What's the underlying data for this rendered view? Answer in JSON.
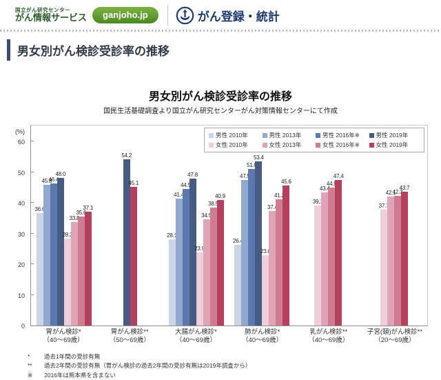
{
  "theme": {
    "logo_green": "#2a5a2a",
    "badge_top": "#7db244",
    "badge_bottom": "#4b8a1f",
    "navy": "#1e3a6e",
    "heading_text": "#323a49",
    "heading_bar": "#3c4c6e"
  },
  "header": {
    "logo_small": "国立がん研究センター",
    "logo_large": "がん情報サービス",
    "badge": "ganjoho.jp",
    "section": "がん登録・統計"
  },
  "page": {
    "title": "男女別がん検診受診率の推移"
  },
  "chart_data": {
    "type": "bar",
    "title": "男女別がん検診受診率の推移",
    "subtitle": "国民生活基礎調査より国立がん研究センターがん対策情報センターにて作成",
    "unit_label": "(%)",
    "ylim": [
      0,
      60
    ],
    "y_ticks": [
      0,
      10,
      20,
      30,
      40,
      50,
      60
    ],
    "grid": false,
    "legend_position": "top-right-inside",
    "series": [
      {
        "name": "男性 2010年",
        "color": "#ccd5e6"
      },
      {
        "name": "男性 2013年",
        "color": "#93a8ce"
      },
      {
        "name": "男性 2016年※",
        "color": "#5b79ae"
      },
      {
        "name": "男性 2019年",
        "color": "#475c82"
      },
      {
        "name": "女性 2010年",
        "color": "#eeced9"
      },
      {
        "name": "女性 2013年",
        "color": "#dfa5b7"
      },
      {
        "name": "女性 2016年※",
        "color": "#cf7b93"
      },
      {
        "name": "女性 2019年",
        "color": "#b5405e"
      }
    ],
    "groups": [
      {
        "label": "胃がん検診*",
        "sublabel": "（40～69歳）",
        "values": [
          "36.6",
          "45.8",
          "46.4",
          "48.0",
          "28.3",
          "33.8",
          "35.6",
          "37.1"
        ]
      },
      {
        "label": "胃がん検診**",
        "sublabel": "（50～69歳）",
        "values": [
          null,
          null,
          null,
          "54.2",
          null,
          null,
          null,
          "45.1"
        ]
      },
      {
        "label": "大腸がん検診*",
        "sublabel": "（40～69歳）",
        "values": [
          "28.1",
          "41.4",
          "44.5",
          "47.8",
          "23.9",
          "34.5",
          "38.5",
          "40.9"
        ]
      },
      {
        "label": "肺がん検診*",
        "sublabel": "（40～69歳）",
        "values": [
          "26.4",
          "47.5",
          "51.0",
          "53.4",
          "23.0",
          "37.4",
          "41.2",
          "45.6"
        ]
      },
      {
        "label": "乳がん検診**",
        "sublabel": "（40～69歳）",
        "values": [
          null,
          null,
          null,
          null,
          "39.1",
          "43.4",
          "44.9",
          "47.4"
        ]
      },
      {
        "label": "子宮(頸)がん検診**",
        "sublabel": "（20～69歳）",
        "values": [
          null,
          null,
          null,
          null,
          "37.7",
          "42.1",
          "42.3",
          "43.7"
        ]
      }
    ]
  },
  "footnotes": [
    {
      "marker": "*",
      "text": "過去1年間の受診有無"
    },
    {
      "marker": "**",
      "text": "過去2年間の受診有無（胃がん検診の過去2年間の受診有無は2019年調査から）"
    },
    {
      "marker": "※",
      "text": "2016年は熊本県を含まない"
    }
  ]
}
